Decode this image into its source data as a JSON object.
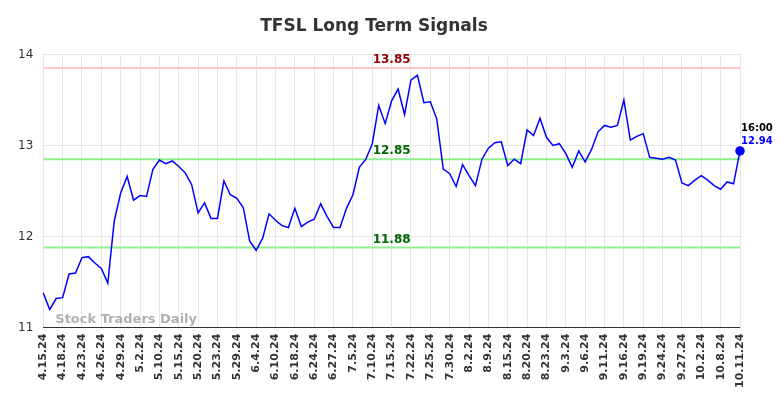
{
  "chart_data": {
    "type": "line",
    "title": "TFSL Long Term Signals",
    "categories": [
      "4.15.24",
      null,
      null,
      "4.18.24",
      null,
      null,
      "4.23.24",
      null,
      null,
      "4.26.24",
      null,
      null,
      "4.29.24",
      null,
      null,
      "5.2.24",
      null,
      null,
      "5.10.24",
      null,
      null,
      "5.15.24",
      null,
      null,
      "5.20.24",
      null,
      null,
      "5.23.24",
      null,
      null,
      "5.29.24",
      null,
      null,
      "6.4.24",
      null,
      null,
      "6.10.24",
      null,
      null,
      "6.18.24",
      null,
      null,
      "6.24.24",
      null,
      null,
      "6.27.24",
      null,
      null,
      "7.5.24",
      null,
      null,
      "7.10.24",
      null,
      null,
      "7.15.24",
      null,
      null,
      "7.22.24",
      null,
      null,
      "7.25.24",
      null,
      null,
      "7.30.24",
      null,
      null,
      "8.2.24",
      null,
      null,
      "8.9.24",
      null,
      null,
      "8.15.24",
      null,
      null,
      "8.20.24",
      null,
      null,
      "8.23.24",
      null,
      null,
      "9.3.24",
      null,
      null,
      "9.6.24",
      null,
      null,
      "9.11.24",
      null,
      null,
      "9.16.24",
      null,
      null,
      "9.19.24",
      null,
      null,
      "9.24.24",
      null,
      null,
      "9.27.24",
      null,
      null,
      "10.2.24",
      null,
      null,
      "10.8.24",
      null,
      null,
      "10.11.24"
    ],
    "values": [
      11.38,
      11.2,
      11.32,
      11.33,
      11.59,
      11.6,
      11.77,
      11.78,
      11.71,
      11.65,
      11.49,
      12.17,
      12.48,
      12.66,
      12.4,
      12.45,
      12.44,
      12.74,
      12.84,
      12.8,
      12.83,
      12.77,
      12.7,
      12.57,
      12.26,
      12.37,
      12.2,
      12.2,
      12.61,
      12.46,
      12.42,
      12.32,
      11.95,
      11.85,
      11.98,
      12.25,
      12.18,
      12.12,
      12.1,
      12.31,
      12.11,
      12.16,
      12.19,
      12.36,
      12.22,
      12.1,
      12.1,
      12.31,
      12.46,
      12.76,
      12.85,
      13.02,
      13.44,
      13.24,
      13.49,
      13.62,
      13.34,
      13.72,
      13.77,
      13.47,
      13.48,
      13.29,
      12.74,
      12.69,
      12.55,
      12.79,
      12.67,
      12.56,
      12.85,
      12.97,
      13.03,
      13.04,
      12.78,
      12.85,
      12.8,
      13.17,
      13.11,
      13.3,
      13.09,
      13.0,
      13.02,
      12.91,
      12.76,
      12.94,
      12.82,
      12.96,
      13.15,
      13.22,
      13.2,
      13.22,
      13.5,
      13.06,
      13.1,
      13.13,
      12.87,
      12.86,
      12.85,
      12.87,
      12.84,
      12.59,
      12.56,
      12.62,
      12.67,
      12.62,
      12.56,
      12.52,
      12.6,
      12.58,
      12.94
    ],
    "color": "#0000ff",
    "ylim": [
      11,
      14
    ],
    "yticks": [
      11,
      12,
      13,
      14
    ],
    "grid": true,
    "levels": [
      {
        "value": 13.85,
        "label": "13.85",
        "color": "#ffc8c8",
        "label_color": "#8b0000"
      },
      {
        "value": 12.85,
        "label": "12.85",
        "color": "#90ee90",
        "label_color": "#006400"
      },
      {
        "value": 11.88,
        "label": "11.88",
        "color": "#90ee90",
        "label_color": "#006400"
      }
    ],
    "last_point": {
      "time": "16:00",
      "label": "12.94"
    },
    "watermark": "Stock Traders Daily"
  }
}
